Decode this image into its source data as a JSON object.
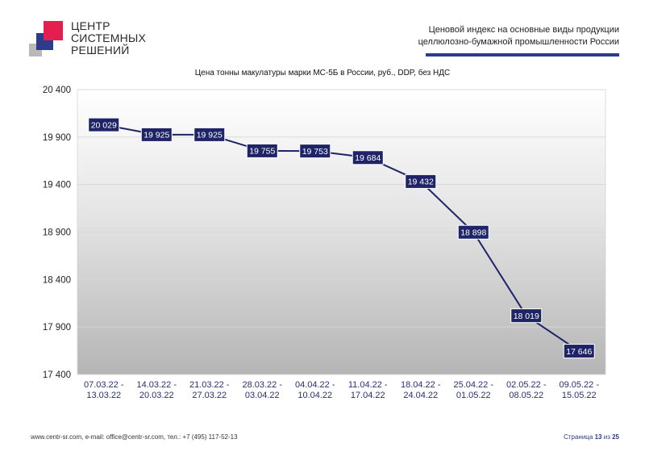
{
  "logo": {
    "lines": [
      "ЦЕНТР",
      "СИСТЕМНЫХ",
      "РЕШЕНИЙ"
    ],
    "colors": {
      "red": "#e31f4f",
      "blue": "#2e3a8c",
      "gray": "#b9b9b9"
    }
  },
  "header": {
    "line1": "Ценовой индекс на основные виды продукции",
    "line2": "целлюлозно-бумажной промышленности России"
  },
  "chart_data": {
    "type": "line",
    "title": "Цена тонны макулатуры марки МС-5Б в России, руб., DDP, без НДС",
    "categories": [
      [
        "07.03.22 -",
        "13.03.22"
      ],
      [
        "14.03.22 -",
        "20.03.22"
      ],
      [
        "21.03.22 -",
        "27.03.22"
      ],
      [
        "28.03.22 -",
        "03.04.22"
      ],
      [
        "04.04.22 -",
        "10.04.22"
      ],
      [
        "11.04.22 -",
        "17.04.22"
      ],
      [
        "18.04.22 -",
        "24.04.22"
      ],
      [
        "25.04.22 -",
        "01.05.22"
      ],
      [
        "02.05.22 -",
        "08.05.22"
      ],
      [
        "09.05.22 -",
        "15.05.22"
      ]
    ],
    "values": [
      20029,
      19925,
      19925,
      19755,
      19753,
      19684,
      19432,
      18898,
      18019,
      17646
    ],
    "value_labels": [
      "20 029",
      "19 925",
      "19 925",
      "19 755",
      "19 753",
      "19 684",
      "19 432",
      "18 898",
      "18 019",
      "17 646"
    ],
    "ylim": [
      17400,
      20400
    ],
    "yticks": [
      17400,
      17900,
      18400,
      18900,
      19400,
      19900,
      20400
    ],
    "ytick_labels": [
      "17 400",
      "17 900",
      "18 400",
      "18 900",
      "19 400",
      "19 900",
      "20 400"
    ],
    "grid": true,
    "line_color": "#1e2466",
    "label_bg": "#1e2466",
    "label_text_color": "#ffffff"
  },
  "footer": {
    "contacts": "www.centr-sr.com, e-mail: office@centr-sr.com, тел.: +7 (495) 117-52-13",
    "page_prefix": "Страница",
    "page_num": "13",
    "page_sep": "из",
    "page_total": "25"
  }
}
